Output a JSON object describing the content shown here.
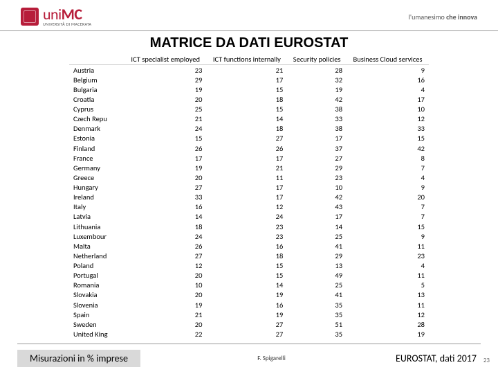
{
  "header": {
    "logo_main_pre": "uni",
    "logo_main_bold": "MC",
    "logo_sub": "UNIVERSITÀ DI MACERATA",
    "tagline_pre": "l'umanesimo ",
    "tagline_bold": "che innova"
  },
  "title": "MATRICE DA DATI EUROSTAT",
  "table": {
    "headers": [
      "",
      "ICT specialist employed",
      "ICT functions internally",
      "Security policies",
      "Business Cloud services"
    ],
    "rows": [
      [
        "Austria",
        23,
        21,
        28,
        9
      ],
      [
        "Belgium",
        29,
        17,
        32,
        16
      ],
      [
        "Bulgaria",
        19,
        15,
        19,
        4
      ],
      [
        "Croatia",
        20,
        18,
        42,
        17
      ],
      [
        "Cyprus",
        25,
        15,
        38,
        10
      ],
      [
        "Czech Repu",
        21,
        14,
        33,
        12
      ],
      [
        "Denmark",
        24,
        18,
        38,
        33
      ],
      [
        "Estonia",
        15,
        27,
        17,
        15
      ],
      [
        "Finland",
        26,
        26,
        37,
        42
      ],
      [
        "France",
        17,
        17,
        27,
        8
      ],
      [
        "Germany",
        19,
        21,
        29,
        7
      ],
      [
        "Greece",
        20,
        11,
        23,
        4
      ],
      [
        "Hungary",
        27,
        17,
        10,
        9
      ],
      [
        "Ireland",
        33,
        17,
        42,
        20
      ],
      [
        "Italy",
        16,
        12,
        43,
        7
      ],
      [
        "Latvia",
        14,
        24,
        17,
        7
      ],
      [
        "Lithuania",
        18,
        23,
        14,
        15
      ],
      [
        "Luxembour",
        24,
        23,
        25,
        9
      ],
      [
        "Malta",
        26,
        16,
        41,
        11
      ],
      [
        "Netherland",
        27,
        18,
        29,
        23
      ],
      [
        "Poland",
        12,
        15,
        13,
        4
      ],
      [
        "Portugal",
        20,
        15,
        49,
        11
      ],
      [
        "Romania",
        10,
        14,
        25,
        5
      ],
      [
        "Slovakia",
        20,
        19,
        41,
        13
      ],
      [
        "Slovenia",
        19,
        16,
        35,
        11
      ],
      [
        "Spain",
        21,
        19,
        35,
        12
      ],
      [
        "Sweden",
        20,
        27,
        51,
        28
      ],
      [
        "United King",
        22,
        27,
        35,
        19
      ]
    ]
  },
  "footer": {
    "left": "Misurazioni in % imprese",
    "center": "F. Spigarelli",
    "right": "EUROSTAT, dati 2017",
    "page": "23"
  }
}
